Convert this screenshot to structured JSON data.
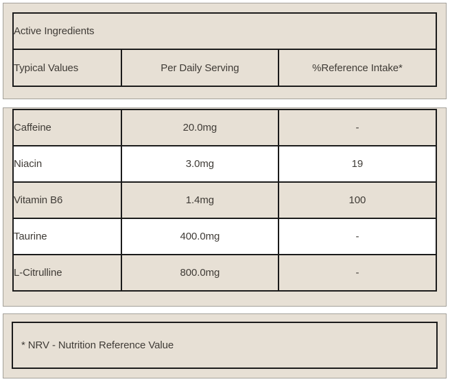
{
  "colors": {
    "panel_bg": "#e7e0d5",
    "row_alt_bg": "#ffffff",
    "table_border": "#1a1a1a",
    "panel_border": "#a3a099",
    "text": "#3f3b36"
  },
  "header_panel": {
    "title": "Active Ingredients",
    "columns": [
      "Typical Values",
      "Per Daily Serving",
      "%Reference Intake*"
    ]
  },
  "ingredients": {
    "rows": [
      {
        "name": "Caffeine",
        "per_daily_serving": "20.0mg",
        "reference_intake": "-"
      },
      {
        "name": "Niacin",
        "per_daily_serving": "3.0mg",
        "reference_intake": "19"
      },
      {
        "name": "Vitamin B6",
        "per_daily_serving": "1.4mg",
        "reference_intake": "100"
      },
      {
        "name": "Taurine",
        "per_daily_serving": "400.0mg",
        "reference_intake": "-"
      },
      {
        "name": "L-Citrulline",
        "per_daily_serving": "800.0mg",
        "reference_intake": "-"
      }
    ]
  },
  "footnote": {
    "text": "* NRV - Nutrition Reference Value"
  }
}
